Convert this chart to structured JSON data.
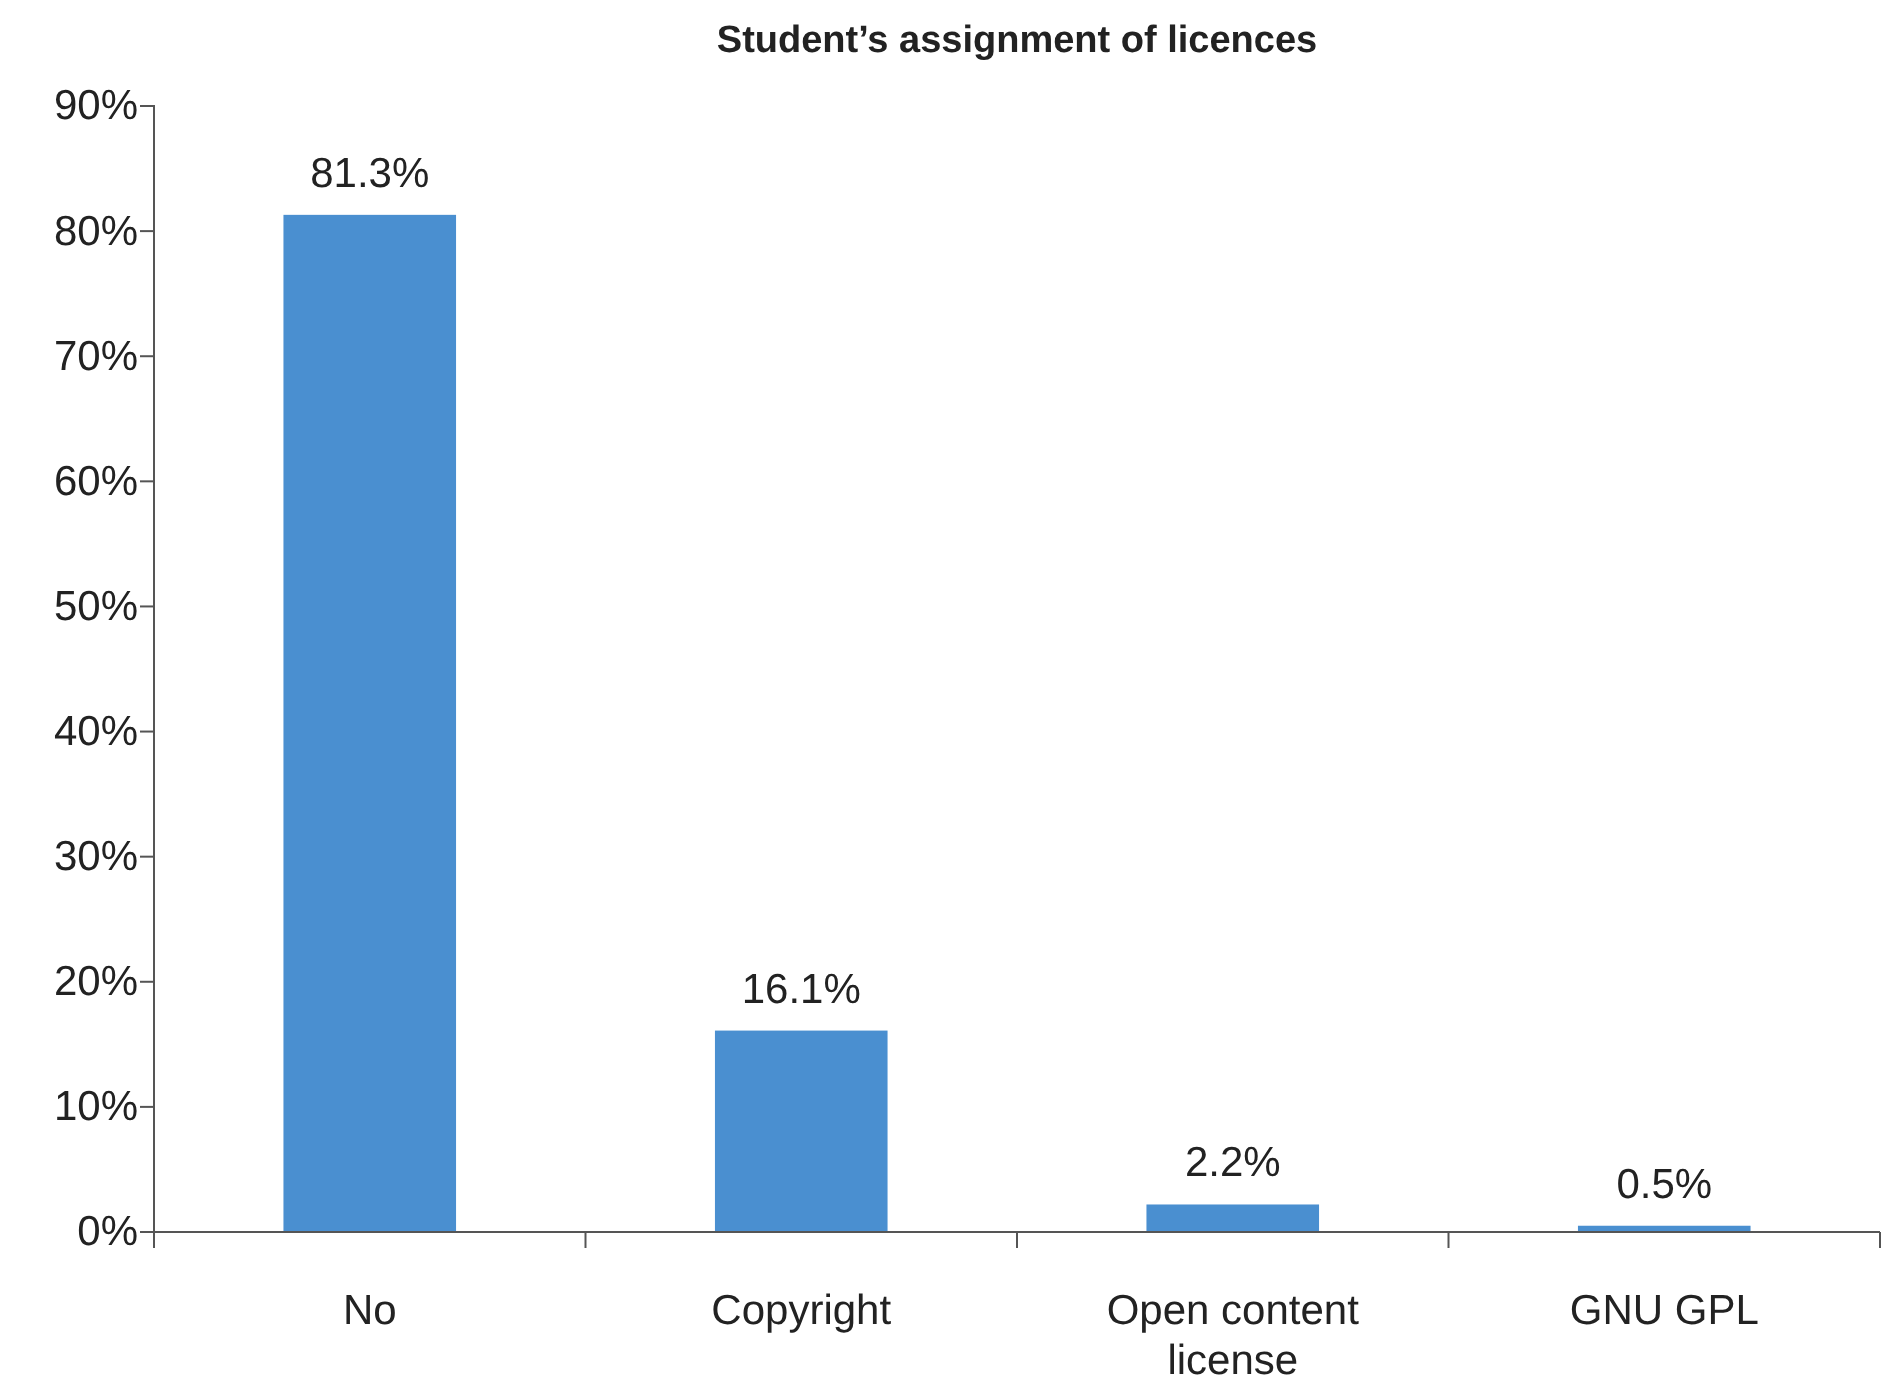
{
  "chart_data": {
    "type": "bar",
    "title": "Student’s assignment of licences",
    "categories": [
      "No",
      "Copyright",
      "Open content license",
      "GNU GPL"
    ],
    "values": [
      81.3,
      16.1,
      2.2,
      0.5
    ],
    "color": "#4a8fd0",
    "value_labels": [
      "81.3%",
      "16.1%",
      "2.2%",
      "0.5%"
    ],
    "ylim": [
      0,
      90
    ],
    "yticks": [
      {
        "value": 0,
        "label": "0%"
      },
      {
        "value": 10,
        "label": "10%"
      },
      {
        "value": 20,
        "label": "20%"
      },
      {
        "value": 30,
        "label": "30%"
      },
      {
        "value": 40,
        "label": "40%"
      },
      {
        "value": 50,
        "label": "50%"
      },
      {
        "value": 60,
        "label": "60%"
      },
      {
        "value": 70,
        "label": "70%"
      },
      {
        "value": 80,
        "label": "80%"
      },
      {
        "value": 90,
        "label": "90%"
      }
    ],
    "grid": false
  }
}
